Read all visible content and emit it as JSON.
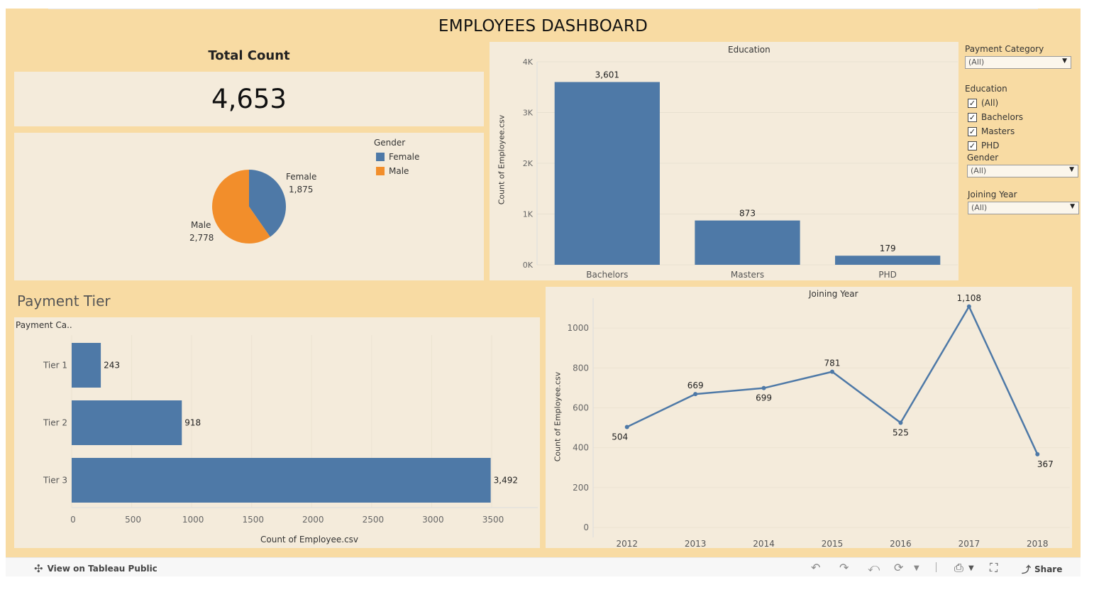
{
  "dashboard": {
    "title": "EMPLOYEES DASHBOARD"
  },
  "total_count": {
    "title": "Total Count",
    "value": "4,653"
  },
  "gender_pie": {
    "legend_title": "Gender",
    "legend": [
      {
        "label": "Female",
        "color": "#4e79a7"
      },
      {
        "label": "Male",
        "color": "#f28e2b"
      }
    ],
    "female_label": "Female",
    "female_value": "1,875",
    "male_label": "Male",
    "male_value": "2,778"
  },
  "education_chart": {
    "title": "Education",
    "ylabel": "Count of Employee.csv",
    "yticks": [
      "0K",
      "1K",
      "2K",
      "3K",
      "4K"
    ]
  },
  "payment_section": {
    "title": "Payment Tier",
    "header": "Payment Ca..",
    "xlabel": "Count of Employee.csv"
  },
  "joining_chart": {
    "title": "Joining Year",
    "ylabel": "Count of Employee.csv"
  },
  "filters": {
    "payment_category": {
      "title": "Payment Category",
      "value": "(All)"
    },
    "education": {
      "title": "Education",
      "options": [
        {
          "label": "(All)",
          "checked": true
        },
        {
          "label": "Bachelors",
          "checked": true
        },
        {
          "label": "Masters",
          "checked": true
        },
        {
          "label": "PHD",
          "checked": true
        }
      ]
    },
    "gender": {
      "title": "Gender",
      "value": "(All)"
    },
    "joining_year": {
      "title": "Joining Year",
      "value": "(All)"
    }
  },
  "footer": {
    "view_label": "View on Tableau Public",
    "share_label": "Share"
  },
  "colors": {
    "blue": "#4e79a7",
    "orange": "#f28e2b",
    "dashboard_bg": "#f8dba3",
    "panel_bg": "#f4ebdb"
  },
  "chart_data": [
    {
      "type": "pie",
      "title": "Gender",
      "categories": [
        "Female",
        "Male"
      ],
      "values": [
        1875,
        2778
      ]
    },
    {
      "type": "bar",
      "title": "Education",
      "categories": [
        "Bachelors",
        "Masters",
        "PHD"
      ],
      "values": [
        3601,
        873,
        179
      ],
      "value_labels": [
        "3,601",
        "873",
        "179"
      ],
      "ylabel": "Count of Employee.csv",
      "ylim": [
        0,
        4000
      ],
      "grid": true
    },
    {
      "type": "bar",
      "orientation": "horizontal",
      "title": "Payment Tier",
      "categories": [
        "Tier 1",
        "Tier 2",
        "Tier 3"
      ],
      "values": [
        243,
        918,
        3492
      ],
      "value_labels": [
        "243",
        "918",
        "3,492"
      ],
      "xlabel": "Count of Employee.csv",
      "xticks": [
        "0",
        "500",
        "1000",
        "1500",
        "2000",
        "2500",
        "3000",
        "3500"
      ],
      "xlim": [
        0,
        3500
      ],
      "grid": true
    },
    {
      "type": "line",
      "title": "Joining Year",
      "x": [
        "2012",
        "2013",
        "2014",
        "2015",
        "2016",
        "2017",
        "2018"
      ],
      "values": [
        504,
        669,
        699,
        781,
        525,
        1108,
        367
      ],
      "value_labels": [
        "504",
        "669",
        "699",
        "781",
        "525",
        "1,108",
        "367"
      ],
      "ylabel": "Count of Employee.csv",
      "yticks": [
        "0",
        "200",
        "400",
        "600",
        "800",
        "1000"
      ],
      "ylim": [
        0,
        1150
      ],
      "grid": true
    }
  ]
}
